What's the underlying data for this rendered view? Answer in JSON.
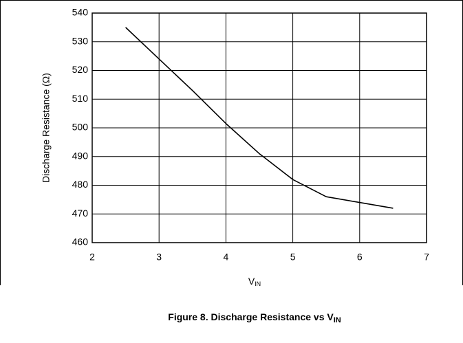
{
  "chart_data": {
    "type": "line",
    "title": {
      "text": "Figure 8. Discharge Resistance vs V",
      "subscript": "IN"
    },
    "x_label": {
      "text": "V",
      "subscript": "IN"
    },
    "y_label": "Discharge Resistance (Ω)",
    "x": [
      2.5,
      3,
      3.5,
      4,
      4.5,
      5,
      5.5,
      6,
      6.5
    ],
    "series": [
      {
        "name": "Discharge Resistance",
        "color": "#000000",
        "values": [
          535,
          524,
          513,
          501.5,
          491,
          482,
          476,
          474,
          472
        ]
      }
    ],
    "xlim": [
      2,
      7
    ],
    "xticks": [
      2,
      3,
      4,
      5,
      6,
      7
    ],
    "ylim": [
      460,
      540
    ],
    "yticks": [
      460,
      470,
      480,
      490,
      500,
      510,
      520,
      530,
      540
    ],
    "grid": true
  }
}
